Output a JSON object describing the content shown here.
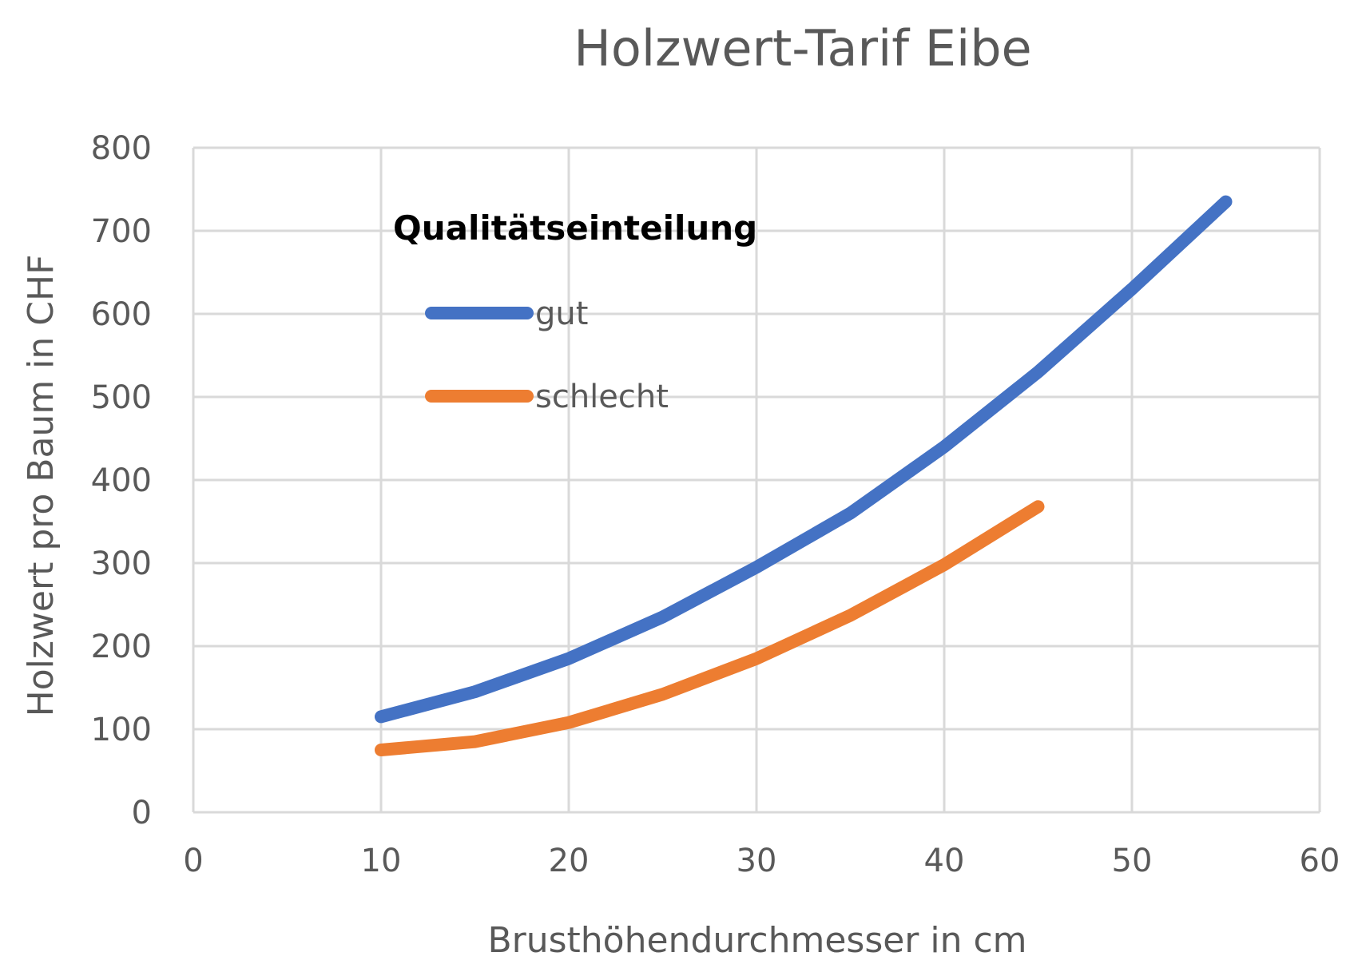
{
  "chart_data": {
    "type": "line",
    "title": "Holzwert-Tarif Eibe",
    "xlabel": "Brusthöhendurchmesser in cm",
    "ylabel": "Holzwert pro Baum in CHF",
    "xlim": [
      0,
      60
    ],
    "ylim": [
      0,
      800
    ],
    "x_ticks": [
      0,
      10,
      20,
      30,
      40,
      50,
      60
    ],
    "y_ticks": [
      0,
      100,
      200,
      300,
      400,
      500,
      600,
      700,
      800
    ],
    "grid": true,
    "legend": {
      "title": "Qualitätseinteilung",
      "placement": "top-left"
    },
    "series": [
      {
        "name": "gut",
        "color": "#4472C4",
        "x": [
          10,
          15,
          20,
          25,
          30,
          35,
          40,
          45,
          50,
          55
        ],
        "y": [
          115,
          145,
          185,
          235,
          295,
          360,
          440,
          530,
          630,
          735
        ]
      },
      {
        "name": "schlecht",
        "color": "#ED7D31",
        "x": [
          10,
          15,
          20,
          25,
          30,
          35,
          40,
          45
        ],
        "y": [
          75,
          85,
          108,
          142,
          185,
          237,
          298,
          368
        ]
      }
    ]
  }
}
